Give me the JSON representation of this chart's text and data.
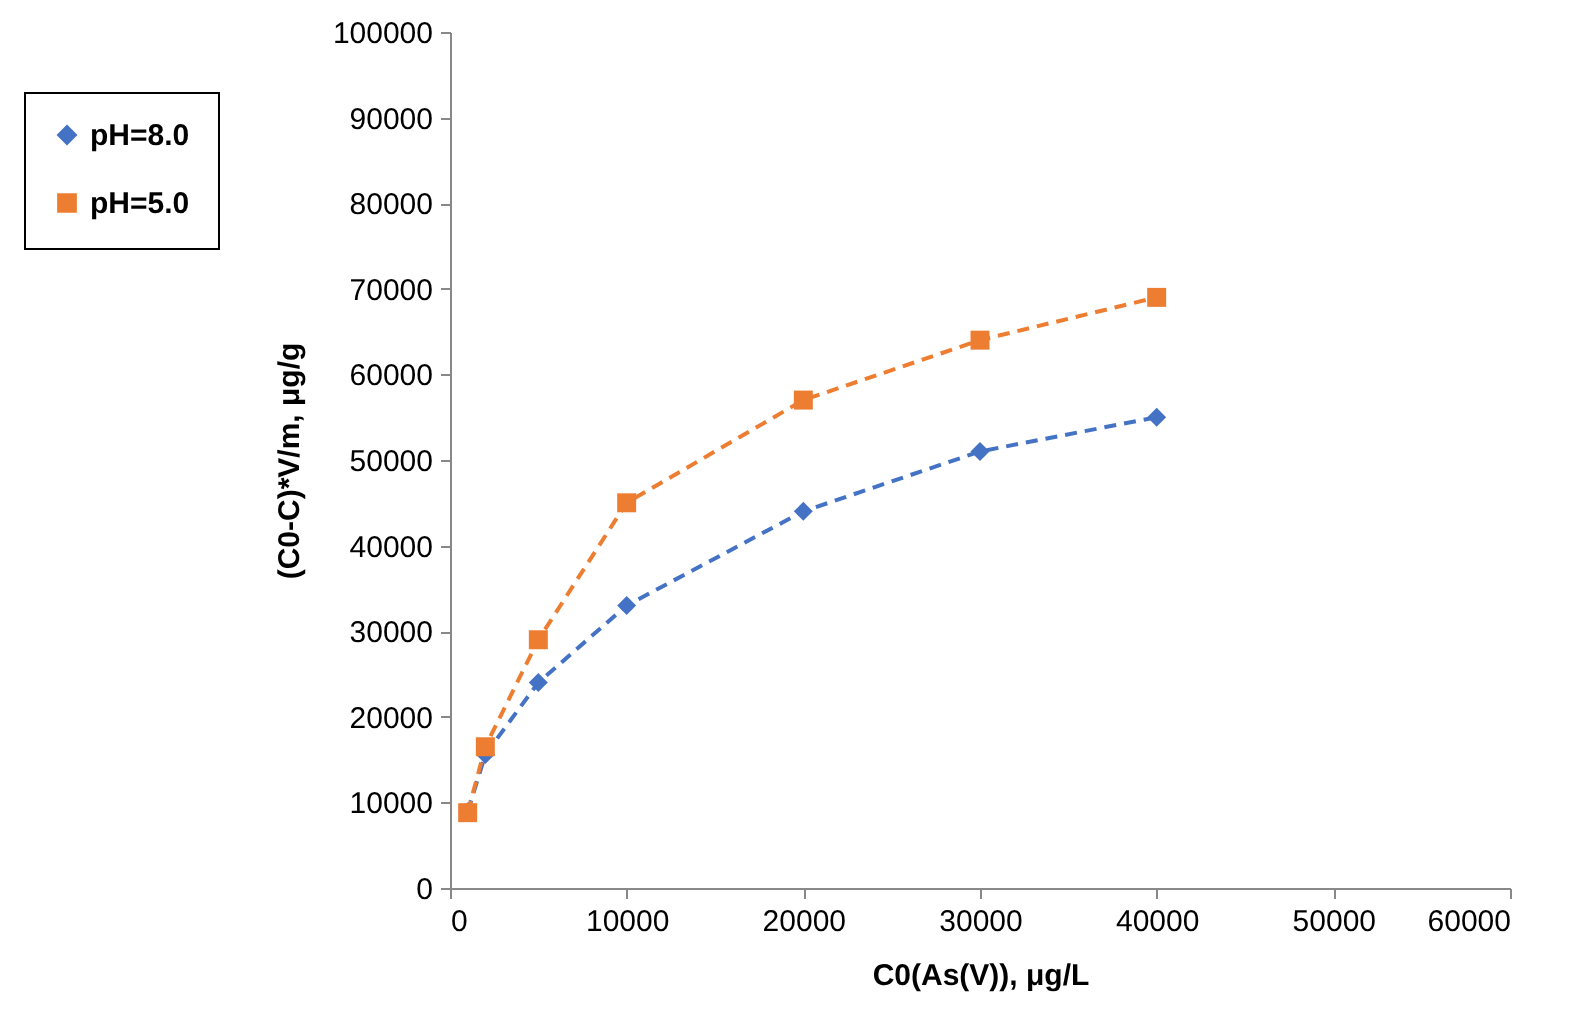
{
  "chart_data": {
    "type": "line",
    "xlabel": "C0(As(V)), μg/L",
    "ylabel": "(C0-C)*V/m, μg/g",
    "x": [
      1000,
      2000,
      5000,
      10000,
      20000,
      30000,
      40000
    ],
    "series": [
      {
        "name": "pH=8.0",
        "color": "#4472c4",
        "marker": "diamond",
        "values": [
          8900,
          15600,
          24000,
          33000,
          44000,
          51000,
          55000
        ]
      },
      {
        "name": "pH=5.0",
        "color": "#ed7d31",
        "marker": "square",
        "values": [
          8800,
          16500,
          29000,
          45000,
          57000,
          64000,
          69000
        ]
      }
    ],
    "xlim": [
      0,
      60000
    ],
    "xticks": [
      0,
      10000,
      20000,
      30000,
      40000,
      50000,
      60000
    ],
    "ylim": [
      0,
      100000
    ],
    "yticks": [
      0,
      10000,
      20000,
      30000,
      40000,
      50000,
      60000,
      70000,
      80000,
      90000,
      100000
    ],
    "grid": false,
    "legend": "top left",
    "line_style": "dashed"
  }
}
